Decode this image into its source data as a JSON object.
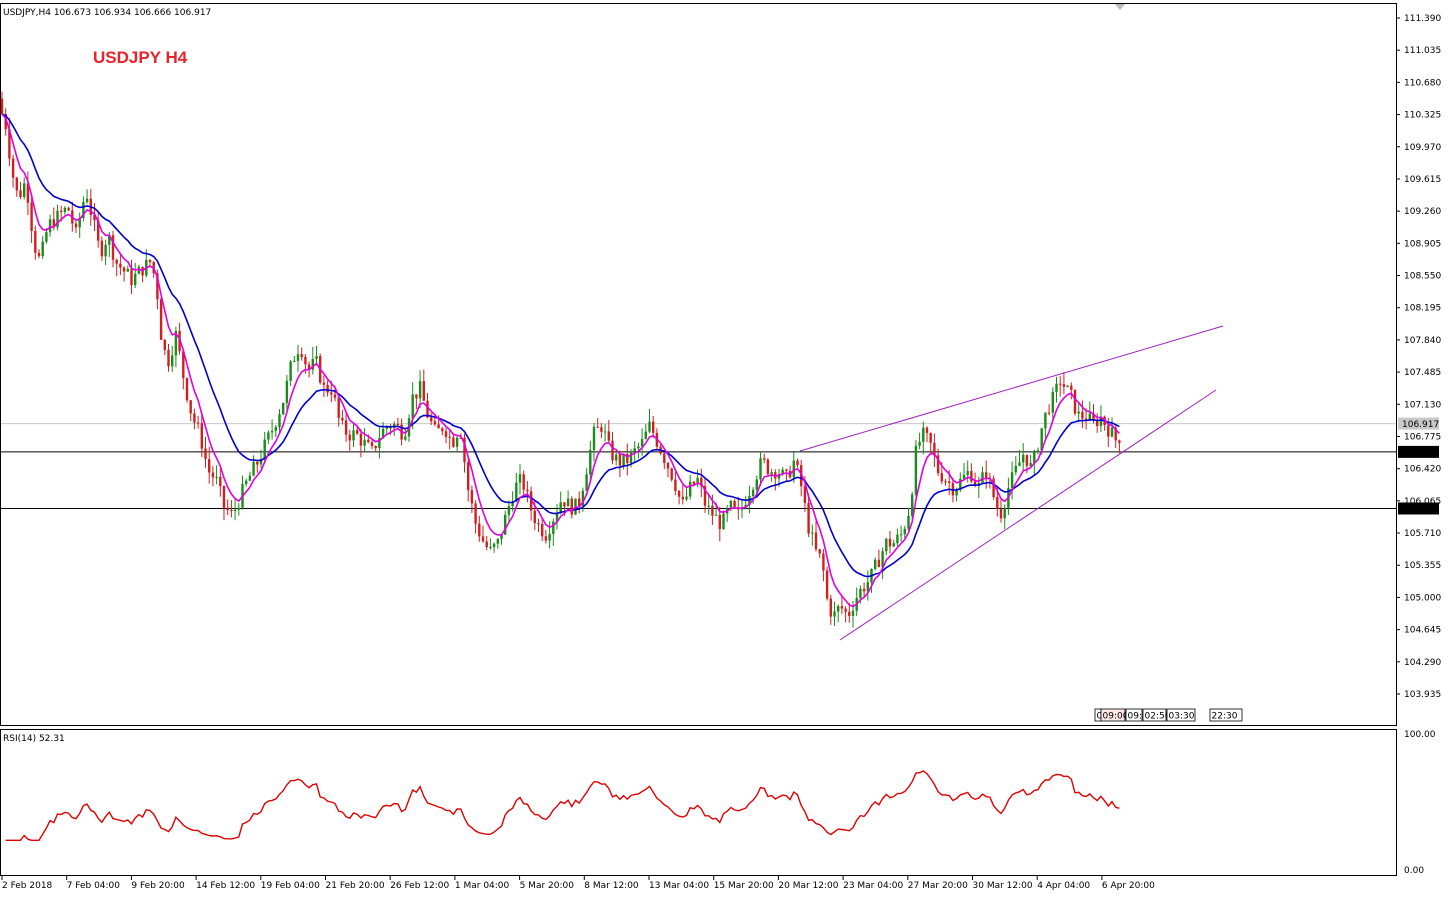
{
  "header": {
    "symbol_info": "USDJPY,H4  106.673 106.934 106.666 106.917",
    "overlay_title": "USDJPY  H4",
    "overlay_color": "#e8232a"
  },
  "rsi_panel": {
    "label": "RSI(14) 52.31",
    "top_label": "100.00",
    "bottom_label": "0.00",
    "color": "#e00000"
  },
  "price_axis_labels": [
    "111.390",
    "111.035",
    "110.680",
    "110.325",
    "109.970",
    "109.615",
    "109.260",
    "108.905",
    "108.550",
    "108.195",
    "107.840",
    "107.485",
    "107.130",
    "106.775",
    "106.420",
    "106.065",
    "105.710",
    "105.355",
    "105.000",
    "104.645",
    "104.290",
    "103.935"
  ],
  "price_markers": {
    "current": "106.917",
    "level1": "106.605",
    "level2": "105.981"
  },
  "time_labels": [
    "2 Feb 2018",
    "7 Feb 04:00",
    "9 Feb 20:00",
    "14 Feb 12:00",
    "19 Feb 04:00",
    "21 Feb 20:00",
    "26 Feb 12:00",
    "1 Mar 04:00",
    "5 Mar 20:00",
    "8 Mar 12:00",
    "13 Mar 04:00",
    "15 Mar 20:00",
    "20 Mar 12:00",
    "23 Mar 04:00",
    "27 Mar 20:00",
    "30 Mar 12:00",
    "4 Apr 04:00",
    "6 Apr 20:00"
  ],
  "period_tabs": [
    "0",
    "09:00",
    "09:",
    "02:50",
    "03:30",
    "22:30"
  ],
  "colors": {
    "bull": "#1a8c1a",
    "bear": "#d11f1f",
    "ma_fast": "#e000e0",
    "ma_slow": "#0000d0",
    "trendline": "#a020c0"
  },
  "chart_data": {
    "type": "candlestick",
    "symbol": "USDJPY",
    "timeframe": "H4",
    "last_bar": {
      "open": 106.673,
      "high": 106.934,
      "low": 106.666,
      "close": 106.917
    },
    "ylim": [
      103.7,
      111.5
    ],
    "horizontal_levels": [
      106.605,
      105.981
    ],
    "close_path": [
      [
        0,
        110.4
      ],
      [
        6,
        110.2
      ],
      [
        12,
        109.7
      ],
      [
        18,
        109.4
      ],
      [
        26,
        109.6
      ],
      [
        34,
        108.9
      ],
      [
        40,
        108.7
      ],
      [
        48,
        109.1
      ],
      [
        58,
        109.2
      ],
      [
        68,
        109.3
      ],
      [
        76,
        109.0
      ],
      [
        86,
        109.5
      ],
      [
        94,
        109.1
      ],
      [
        100,
        108.8
      ],
      [
        108,
        109.0
      ],
      [
        116,
        108.7
      ],
      [
        124,
        108.6
      ],
      [
        132,
        108.5
      ],
      [
        140,
        108.6
      ],
      [
        150,
        108.7
      ],
      [
        156,
        108.5
      ],
      [
        162,
        107.8
      ],
      [
        168,
        107.6
      ],
      [
        176,
        107.9
      ],
      [
        184,
        107.4
      ],
      [
        192,
        107.0
      ],
      [
        200,
        106.8
      ],
      [
        208,
        106.4
      ],
      [
        216,
        106.3
      ],
      [
        224,
        106.0
      ],
      [
        232,
        105.9
      ],
      [
        240,
        106.1
      ],
      [
        248,
        106.3
      ],
      [
        258,
        106.5
      ],
      [
        266,
        106.7
      ],
      [
        274,
        106.9
      ],
      [
        284,
        107.2
      ],
      [
        292,
        107.6
      ],
      [
        300,
        107.8
      ],
      [
        308,
        107.5
      ],
      [
        316,
        107.6
      ],
      [
        324,
        107.3
      ],
      [
        332,
        107.3
      ],
      [
        340,
        106.9
      ],
      [
        348,
        106.8
      ],
      [
        356,
        106.8
      ],
      [
        364,
        106.7
      ],
      [
        372,
        106.6
      ],
      [
        380,
        106.8
      ],
      [
        388,
        106.9
      ],
      [
        396,
        106.9
      ],
      [
        404,
        106.8
      ],
      [
        412,
        107.2
      ],
      [
        420,
        107.3
      ],
      [
        428,
        107.0
      ],
      [
        436,
        106.8
      ],
      [
        444,
        106.9
      ],
      [
        452,
        106.7
      ],
      [
        460,
        106.9
      ],
      [
        468,
        106.2
      ],
      [
        476,
        105.8
      ],
      [
        484,
        105.6
      ],
      [
        490,
        105.5
      ],
      [
        498,
        105.6
      ],
      [
        506,
        105.9
      ],
      [
        514,
        106.2
      ],
      [
        522,
        106.3
      ],
      [
        530,
        106.0
      ],
      [
        538,
        105.8
      ],
      [
        546,
        105.7
      ],
      [
        554,
        105.9
      ],
      [
        562,
        106.1
      ],
      [
        570,
        106.0
      ],
      [
        578,
        106.0
      ],
      [
        586,
        106.4
      ],
      [
        594,
        106.8
      ],
      [
        602,
        106.9
      ],
      [
        610,
        106.6
      ],
      [
        618,
        106.5
      ],
      [
        626,
        106.5
      ],
      [
        634,
        106.6
      ],
      [
        642,
        106.7
      ],
      [
        650,
        106.9
      ],
      [
        658,
        106.7
      ],
      [
        666,
        106.5
      ],
      [
        674,
        106.3
      ],
      [
        682,
        106.0
      ],
      [
        690,
        106.2
      ],
      [
        698,
        106.3
      ],
      [
        706,
        106.0
      ],
      [
        714,
        105.9
      ],
      [
        722,
        105.8
      ],
      [
        730,
        106.0
      ],
      [
        738,
        105.9
      ],
      [
        746,
        106.1
      ],
      [
        754,
        106.3
      ],
      [
        762,
        106.5
      ],
      [
        770,
        106.4
      ],
      [
        778,
        106.4
      ],
      [
        786,
        106.3
      ],
      [
        794,
        106.5
      ],
      [
        800,
        106.3
      ],
      [
        808,
        105.8
      ],
      [
        816,
        105.5
      ],
      [
        822,
        105.4
      ],
      [
        828,
        104.9
      ],
      [
        834,
        104.8
      ],
      [
        840,
        104.9
      ],
      [
        848,
        104.8
      ],
      [
        856,
        105.0
      ],
      [
        862,
        105.1
      ],
      [
        870,
        105.2
      ],
      [
        878,
        105.4
      ],
      [
        886,
        105.6
      ],
      [
        894,
        105.6
      ],
      [
        902,
        105.7
      ],
      [
        910,
        106.0
      ],
      [
        916,
        106.6
      ],
      [
        922,
        106.8
      ],
      [
        930,
        106.7
      ],
      [
        938,
        106.4
      ],
      [
        946,
        106.3
      ],
      [
        954,
        106.2
      ],
      [
        962,
        106.3
      ],
      [
        970,
        106.4
      ],
      [
        978,
        106.2
      ],
      [
        986,
        106.4
      ],
      [
        994,
        106.1
      ],
      [
        1000,
        105.9
      ],
      [
        1008,
        106.2
      ],
      [
        1016,
        106.4
      ],
      [
        1024,
        106.6
      ],
      [
        1032,
        106.4
      ],
      [
        1040,
        106.8
      ],
      [
        1048,
        107.1
      ],
      [
        1054,
        107.2
      ],
      [
        1060,
        107.4
      ],
      [
        1066,
        107.3
      ],
      [
        1072,
        107.2
      ],
      [
        1078,
        107.0
      ],
      [
        1086,
        107.0
      ],
      [
        1094,
        106.9
      ],
      [
        1100,
        107.0
      ],
      [
        1106,
        106.9
      ],
      [
        1112,
        106.8
      ],
      [
        1118,
        106.7
      ],
      [
        1122,
        106.917
      ]
    ]
  }
}
